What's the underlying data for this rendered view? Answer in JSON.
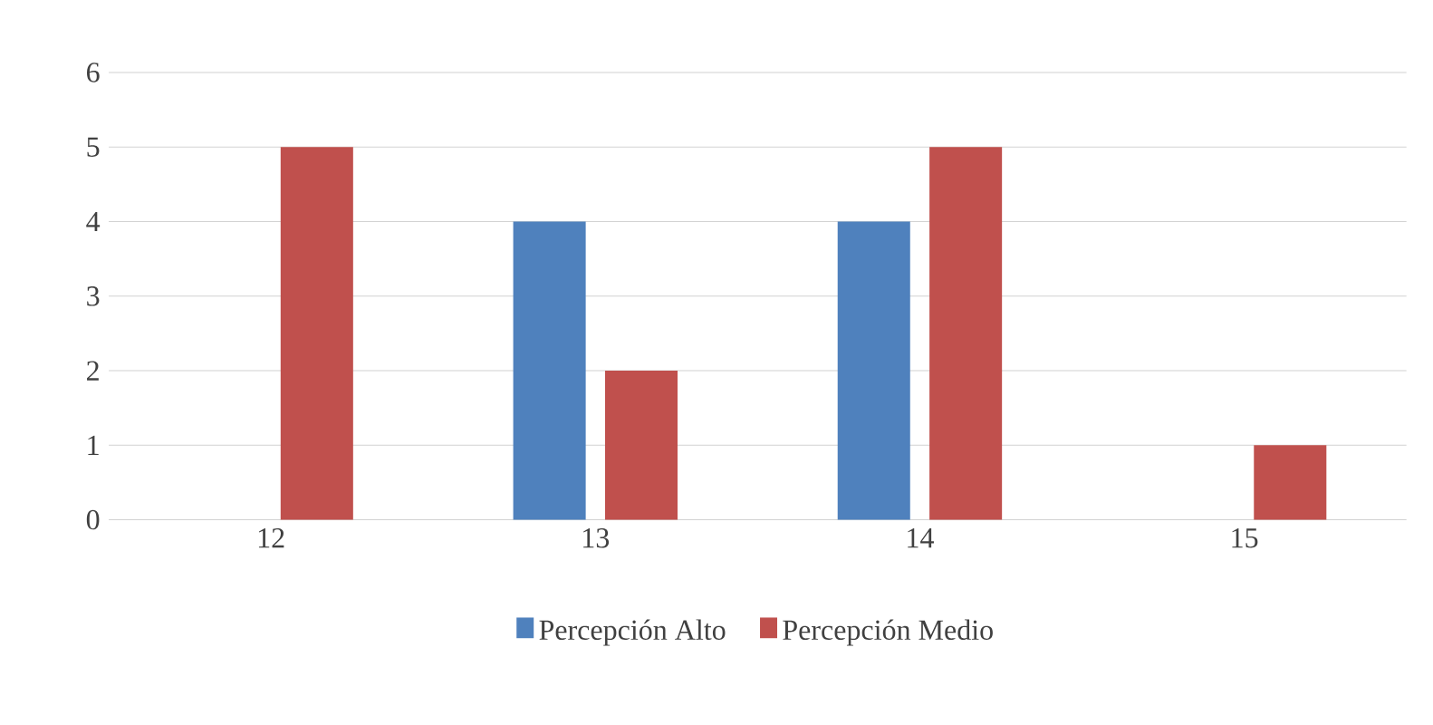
{
  "chart_data": {
    "type": "bar",
    "categories": [
      "12",
      "13",
      "14",
      "15"
    ],
    "series": [
      {
        "name": "Percepción Alto",
        "color": "#4f81bd",
        "values": [
          0,
          4,
          4,
          0
        ]
      },
      {
        "name": "Percepción Medio",
        "color": "#c0504d",
        "values": [
          5,
          2,
          5,
          1
        ]
      }
    ],
    "ylim": [
      0,
      6
    ],
    "yticks": [
      0,
      1,
      2,
      3,
      4,
      5,
      6
    ],
    "grid": "y",
    "legend": "bottom"
  }
}
